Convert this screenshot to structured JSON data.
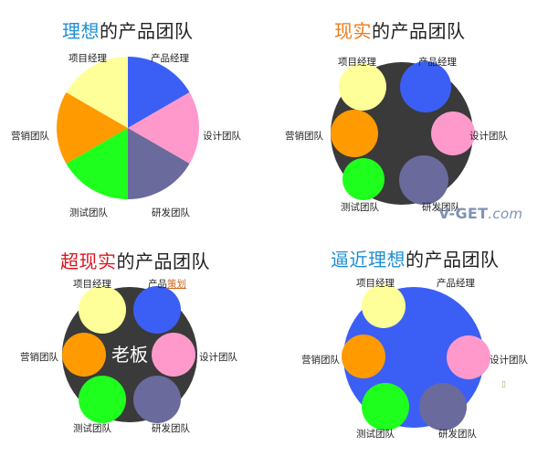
{
  "panels": [
    {
      "title_highlight": "理想",
      "title_rest": "的产品团队",
      "highlight_color": "#1e8fd5",
      "labels": {
        "project": "项目经理",
        "product": "产品经理",
        "design": "设计团队",
        "rnd": "研发团队",
        "test": "测试团队",
        "marketing": "营销团队"
      }
    },
    {
      "title_highlight": "现实",
      "title_rest": "的产品团队",
      "highlight_color": "#f07a1a",
      "labels": {
        "project": "项目经理",
        "product": "产品经理",
        "design": "设计团队",
        "rnd": "研发团队",
        "test": "测试团队",
        "marketing": "营销团队"
      }
    },
    {
      "title_highlight": "超现实",
      "title_rest": "的产品团队",
      "highlight_color": "#e0141e",
      "center_text": "老板",
      "labels": {
        "project": "项目经理",
        "product_prefix": "产品",
        "product_link": "策划",
        "design": "设计团队",
        "rnd": "研发团队",
        "test": "测试团队",
        "marketing": "营销团队"
      }
    },
    {
      "title_highlight": "逼近理想",
      "title_rest": "的产品团队",
      "highlight_color": "#1e8fd5",
      "labels": {
        "project": "项目经理",
        "product": "产品经理",
        "design": "设计团队",
        "rnd": "研发团队",
        "test": "测试团队",
        "marketing": "营销团队"
      }
    }
  ],
  "colors": {
    "product": "#3b5ff5",
    "design": "#ff99cc",
    "rnd": "#6a6a9c",
    "test": "#1eff1e",
    "marketing": "#ff9a00",
    "project": "#ffff99",
    "dark_bg": "#3a3a3a",
    "blue_bg": "#3b5ff5"
  },
  "watermark": {
    "main": "V-GET",
    "suffix": ".com"
  },
  "link_color": "#d2691e"
}
